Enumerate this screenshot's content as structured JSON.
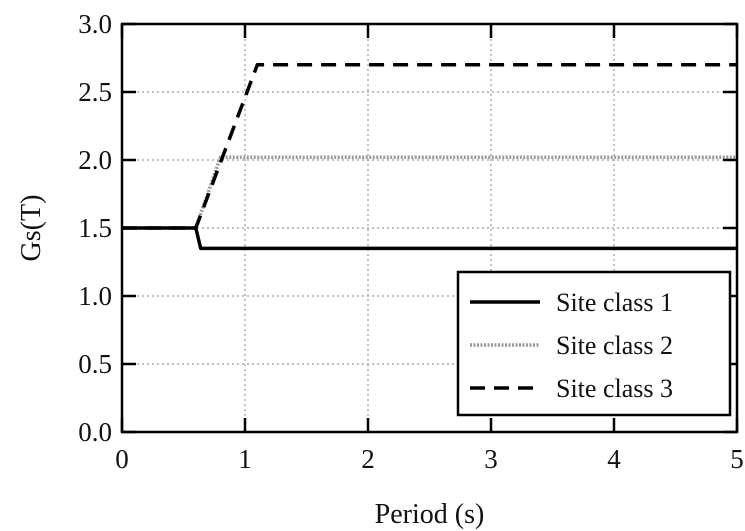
{
  "chart_data": {
    "type": "line",
    "xlabel": "Period (s)",
    "ylabel": "Gs(T)",
    "xlim": [
      0,
      5
    ],
    "ylim": [
      0,
      3
    ],
    "xticks": [
      "0",
      "1",
      "2",
      "3",
      "4",
      "5"
    ],
    "yticks": [
      "0.0",
      "0.5",
      "1.0",
      "1.5",
      "2.0",
      "2.5",
      "3.0"
    ],
    "grid": true,
    "legend_position": "bottom-right",
    "series": [
      {
        "name": "Site class 1",
        "style": "solid",
        "color": "#000000",
        "x": [
          0,
          0.6,
          0.64,
          5
        ],
        "y": [
          1.5,
          1.5,
          1.35,
          1.35
        ]
      },
      {
        "name": "Site class 2",
        "style": "dotted",
        "color": "#9a9a9a",
        "x": [
          0,
          0.6,
          0.8,
          5
        ],
        "y": [
          1.5,
          1.5,
          2.02,
          2.02
        ]
      },
      {
        "name": "Site class 3",
        "style": "dashed",
        "color": "#000000",
        "x": [
          0,
          0.6,
          1.1,
          5
        ],
        "y": [
          1.5,
          1.5,
          2.7,
          2.7
        ]
      }
    ]
  }
}
